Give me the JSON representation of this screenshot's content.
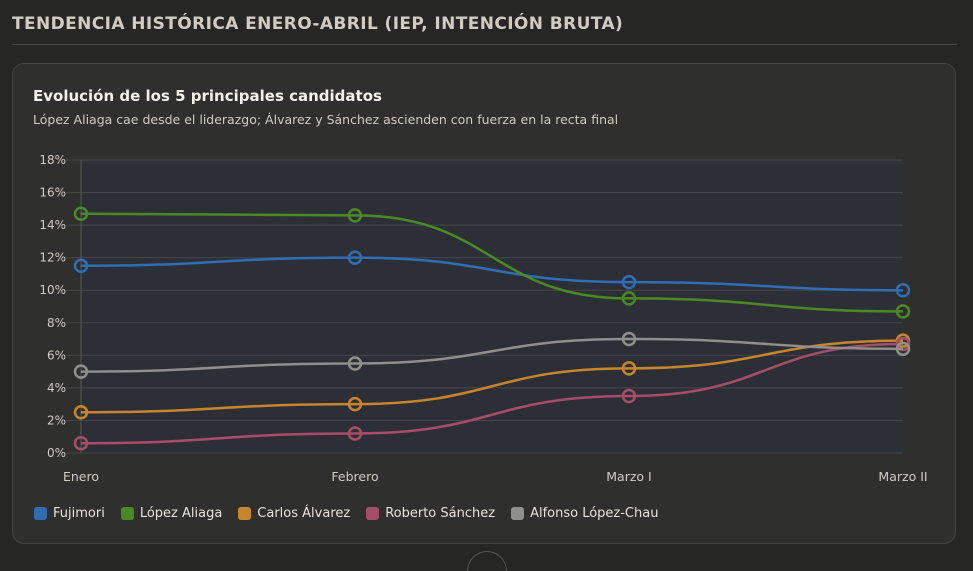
{
  "section": {
    "title": "TENDENCIA HISTÓRICA ENERO-ABRIL (IEP, INTENCIÓN BRUTA)"
  },
  "chart_data": {
    "type": "line",
    "title": "Evolución de los 5 principales candidatos",
    "subtitle": "López Aliaga cae desde el liderazgo; Álvarez y Sánchez ascienden con fuerza en la recta final",
    "categories": [
      "Enero",
      "Febrero",
      "Marzo I",
      "Marzo II"
    ],
    "ylim": [
      0,
      18
    ],
    "yticks": [
      0,
      2,
      4,
      6,
      8,
      10,
      12,
      14,
      16,
      18
    ],
    "ytick_suffix": "%",
    "grid": true,
    "legend_position": "bottom",
    "series": [
      {
        "name": "Fujimori",
        "color": "#2f6db5",
        "values": [
          11.5,
          12.0,
          10.5,
          10.0
        ]
      },
      {
        "name": "López Aliaga",
        "color": "#4a8a22",
        "values": [
          14.7,
          14.6,
          9.5,
          8.7
        ]
      },
      {
        "name": "Carlos Álvarez",
        "color": "#c8862a",
        "values": [
          2.5,
          3.0,
          5.2,
          6.9
        ]
      },
      {
        "name": "Roberto Sánchez",
        "color": "#a84d68",
        "values": [
          0.6,
          1.2,
          3.5,
          6.7
        ]
      },
      {
        "name": "Alfonso López-Chau",
        "color": "#8f8f8c",
        "values": [
          5.0,
          5.5,
          7.0,
          6.4
        ]
      }
    ]
  }
}
